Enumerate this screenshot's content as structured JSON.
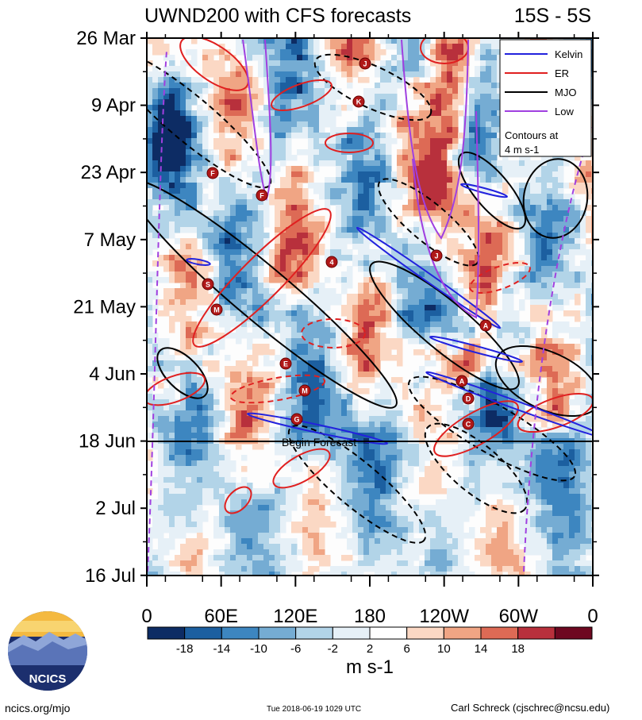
{
  "chart_data": {
    "type": "heatmap",
    "title": "UWND200 with CFS forecasts",
    "region": "15S - 5S",
    "y_ticks": [
      "26 Mar",
      "9 Apr",
      "23 Apr",
      "7 May",
      "21 May",
      "4 Jun",
      "18 Jun",
      "2 Jul",
      "16 Jul"
    ],
    "x_ticks": [
      "0",
      "60E",
      "120E",
      "180",
      "120W",
      "60W",
      "0"
    ],
    "x_range_deg": [
      0,
      360
    ],
    "colorbar": {
      "levels": [
        "-18",
        "-14",
        "-10",
        "-6",
        "-2",
        "2",
        "6",
        "10",
        "14",
        "18"
      ],
      "colors": [
        "#0d2c64",
        "#1c5fa0",
        "#3d86c0",
        "#75acd3",
        "#b2d4e8",
        "#e6f0f7",
        "#ffffff",
        "#fbd8c4",
        "#f0a584",
        "#dd6a55",
        "#b8303c",
        "#6e0821"
      ],
      "units": "m s-1"
    },
    "legend": [
      {
        "label": "Kelvin",
        "color": "#2222dd"
      },
      {
        "label": "ER",
        "color": "#e02020"
      },
      {
        "label": "MJO",
        "color": "#000000"
      },
      {
        "label": "Low",
        "color": "#a040e0"
      }
    ],
    "legend_note_1": "Contours at",
    "legend_note_2": "4 m s-1",
    "forecast_label": "Begin Forecast",
    "forecast_start": "18 Jun",
    "storm_markers": [
      "J",
      "K",
      "F",
      "F",
      "4",
      "S",
      "M",
      "E",
      "M",
      "G",
      "A",
      "A",
      "D",
      "C",
      "J"
    ]
  },
  "footer": {
    "site": "ncics.org/mjo",
    "timestamp": "Tue 2018-06-19 1029 UTC",
    "author": "Carl Schreck (cjschrec@ncsu.edu)"
  },
  "logo": {
    "text": "NCICS"
  }
}
